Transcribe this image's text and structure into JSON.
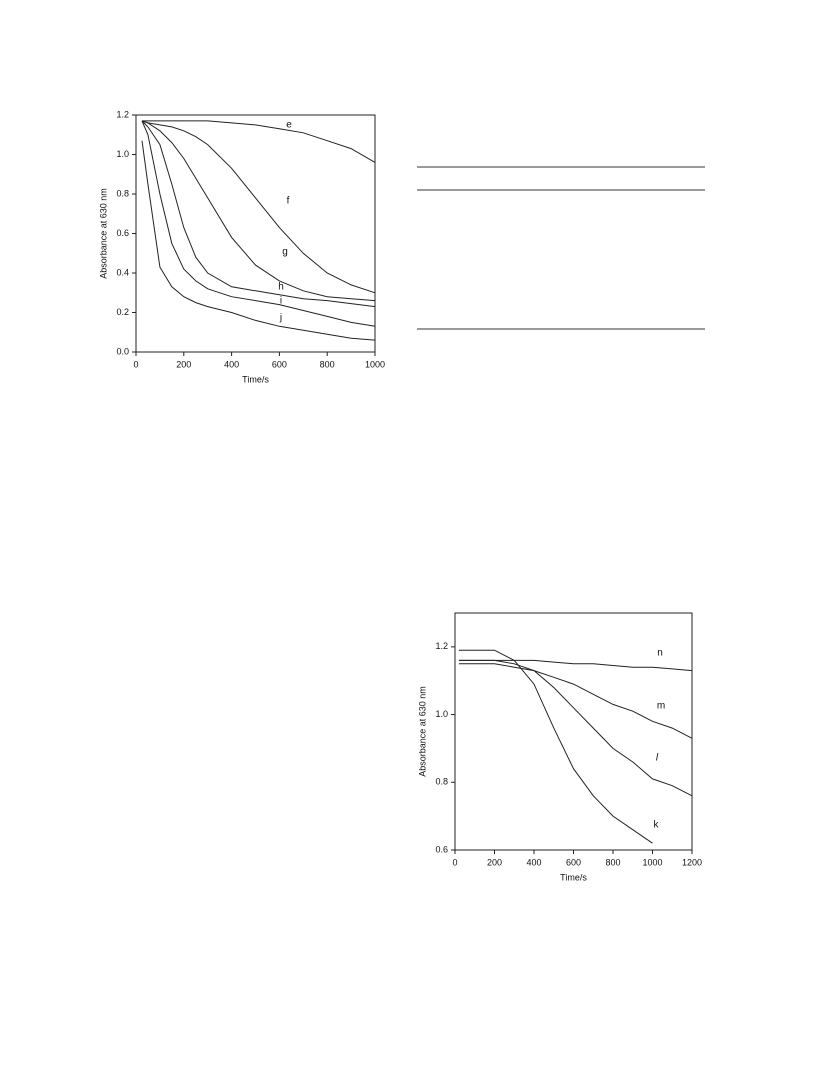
{
  "chart_data": [
    {
      "type": "line",
      "x_label": "Time/s",
      "y_label": "Absorbance at 630 nm",
      "xlim": [
        0,
        1000
      ],
      "ylim": [
        0,
        1.2
      ],
      "xticks": [
        0,
        200,
        400,
        600,
        800,
        1000
      ],
      "yticks": [
        {
          "value": 0,
          "label": "0.0"
        },
        0.2,
        0.4,
        0.6,
        0.8,
        {
          "value": 1,
          "label": "1.0"
        },
        1.2
      ],
      "x": [
        25,
        50,
        100,
        150,
        200,
        250,
        300,
        400,
        500,
        600,
        700,
        800,
        900,
        1000
      ],
      "series": [
        {
          "name": "e",
          "color": "#222222",
          "values": [
            1.17,
            1.17,
            1.17,
            1.17,
            1.17,
            1.17,
            1.17,
            1.16,
            1.15,
            1.13,
            1.11,
            1.07,
            1.03,
            0.96
          ]
        },
        {
          "name": "f",
          "color": "#222222",
          "values": [
            1.17,
            1.16,
            1.15,
            1.14,
            1.12,
            1.09,
            1.05,
            0.93,
            0.78,
            0.63,
            0.5,
            0.4,
            0.34,
            0.3
          ]
        },
        {
          "name": "g",
          "color": "#222222",
          "values": [
            1.17,
            1.16,
            1.12,
            1.06,
            0.98,
            0.88,
            0.78,
            0.58,
            0.44,
            0.36,
            0.31,
            0.28,
            0.27,
            0.26
          ]
        },
        {
          "name": "h",
          "color": "#222222",
          "values": [
            1.17,
            1.14,
            1.05,
            0.85,
            0.63,
            0.48,
            0.4,
            0.33,
            0.31,
            0.29,
            0.27,
            0.26,
            0.245,
            0.23
          ]
        },
        {
          "name": "i",
          "color": "#222222",
          "values": [
            1.17,
            1.1,
            0.8,
            0.55,
            0.42,
            0.36,
            0.32,
            0.28,
            0.26,
            0.24,
            0.21,
            0.18,
            0.15,
            0.13
          ]
        },
        {
          "name": "j",
          "color": "#222222",
          "values": [
            1.07,
            0.85,
            0.43,
            0.33,
            0.28,
            0.25,
            0.23,
            0.2,
            0.16,
            0.13,
            0.11,
            0.09,
            0.07,
            0.06
          ]
        }
      ]
    },
    {
      "type": "line",
      "x_label": "Time/s",
      "y_label": "Absorbance at 630 nm",
      "xlim": [
        0,
        1200
      ],
      "ylim": [
        0.6,
        1.3
      ],
      "xticks": [
        0,
        200,
        400,
        600,
        800,
        1000,
        1200
      ],
      "yticks": [
        0.6,
        0.8,
        {
          "value": 1,
          "label": "1.0"
        },
        1.2
      ],
      "x": [
        20,
        100,
        200,
        300,
        400,
        500,
        600,
        700,
        800,
        900,
        1000,
        1100,
        1200
      ],
      "series": [
        {
          "name": "n",
          "color": "#222222",
          "values": [
            1.16,
            1.16,
            1.16,
            1.16,
            1.16,
            1.155,
            1.15,
            1.15,
            1.145,
            1.14,
            1.14,
            1.135,
            1.13
          ]
        },
        {
          "name": "m",
          "color": "#222222",
          "values": [
            1.15,
            1.15,
            1.15,
            1.14,
            1.13,
            1.11,
            1.09,
            1.06,
            1.03,
            1.01,
            0.98,
            0.96,
            0.93
          ]
        },
        {
          "name": "l",
          "color": "#222222",
          "values": [
            1.16,
            1.16,
            1.16,
            1.15,
            1.13,
            1.08,
            1.02,
            0.96,
            0.9,
            0.86,
            0.81,
            0.79,
            0.76
          ]
        },
        {
          "name": "k",
          "color": "#222222",
          "values": [
            1.19,
            1.19,
            1.19,
            1.16,
            1.09,
            0.96,
            0.84,
            0.76,
            0.7,
            0.66,
            0.62,
            null,
            null
          ]
        }
      ]
    }
  ]
}
